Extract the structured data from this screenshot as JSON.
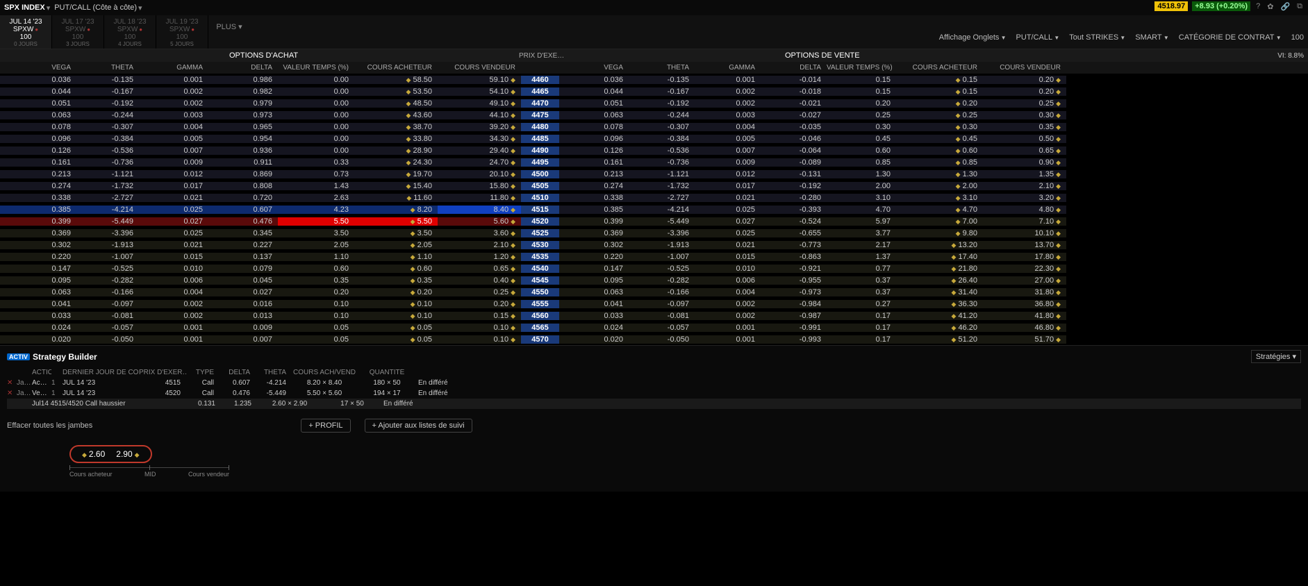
{
  "top": {
    "symbol": "SPX INDEX",
    "mode": "PUT/CALL (Côte à côte)",
    "price": "4518.97",
    "change": "+8.93 (+0.20%)"
  },
  "expiries": [
    {
      "date": "JUL 14 '23",
      "sym": "SPXW",
      "mult": "100",
      "days": "0 JOURS",
      "active": true
    },
    {
      "date": "JUL 17 '23",
      "sym": "SPXW",
      "mult": "100",
      "days": "3 JOURS",
      "active": false
    },
    {
      "date": "JUL 18 '23",
      "sym": "SPXW",
      "mult": "100",
      "days": "4 JOURS",
      "active": false
    },
    {
      "date": "JUL 19 '23",
      "sym": "SPXW",
      "mult": "100",
      "days": "5 JOURS",
      "active": false
    }
  ],
  "plus": "PLUS ▾",
  "filters": {
    "affichage": "Affichage Onglets",
    "putcall": "PUT/CALL",
    "strikes": "Tout STRIKES",
    "smart": "SMART",
    "cat": "CATÉGORIE DE CONTRAT",
    "mult": "100"
  },
  "section": {
    "calls": "OPTIONS D'ACHAT",
    "puts": "OPTIONS DE VENTE",
    "strike": "PRIX D'EXE…",
    "vi": "VI: 8.8%"
  },
  "cols": {
    "vega": "VÉGA",
    "theta": "THÊTA",
    "gamma": "GAMMA",
    "delta": "DELTA",
    "vtemps": "VALEUR TEMPS (%)",
    "bid": "COURS ACHETEUR",
    "ask": "COURS VENDEUR"
  },
  "rows": [
    {
      "s": "4460",
      "c": {
        "vega": "0.036",
        "theta": "-0.135",
        "gamma": "0.001",
        "delta": "0.986",
        "vt": "0.00",
        "bid": "58.50",
        "ask": "59.10"
      },
      "p": {
        "vega": "0.036",
        "theta": "-0.135",
        "gamma": "0.001",
        "delta": "-0.014",
        "vt": "0.15",
        "bid": "0.15",
        "ask": "0.20"
      },
      "itm": true
    },
    {
      "s": "4465",
      "c": {
        "vega": "0.044",
        "theta": "-0.167",
        "gamma": "0.002",
        "delta": "0.982",
        "vt": "0.00",
        "bid": "53.50",
        "ask": "54.10"
      },
      "p": {
        "vega": "0.044",
        "theta": "-0.167",
        "gamma": "0.002",
        "delta": "-0.018",
        "vt": "0.15",
        "bid": "0.15",
        "ask": "0.20"
      },
      "itm": true
    },
    {
      "s": "4470",
      "c": {
        "vega": "0.051",
        "theta": "-0.192",
        "gamma": "0.002",
        "delta": "0.979",
        "vt": "0.00",
        "bid": "48.50",
        "ask": "49.10"
      },
      "p": {
        "vega": "0.051",
        "theta": "-0.192",
        "gamma": "0.002",
        "delta": "-0.021",
        "vt": "0.20",
        "bid": "0.20",
        "ask": "0.25"
      },
      "itm": true
    },
    {
      "s": "4475",
      "c": {
        "vega": "0.063",
        "theta": "-0.244",
        "gamma": "0.003",
        "delta": "0.973",
        "vt": "0.00",
        "bid": "43.60",
        "ask": "44.10"
      },
      "p": {
        "vega": "0.063",
        "theta": "-0.244",
        "gamma": "0.003",
        "delta": "-0.027",
        "vt": "0.25",
        "bid": "0.25",
        "ask": "0.30"
      },
      "itm": true
    },
    {
      "s": "4480",
      "c": {
        "vega": "0.078",
        "theta": "-0.307",
        "gamma": "0.004",
        "delta": "0.965",
        "vt": "0.00",
        "bid": "38.70",
        "ask": "39.20"
      },
      "p": {
        "vega": "0.078",
        "theta": "-0.307",
        "gamma": "0.004",
        "delta": "-0.035",
        "vt": "0.30",
        "bid": "0.30",
        "ask": "0.35"
      },
      "itm": true
    },
    {
      "s": "4485",
      "c": {
        "vega": "0.096",
        "theta": "-0.384",
        "gamma": "0.005",
        "delta": "0.954",
        "vt": "0.00",
        "bid": "33.80",
        "ask": "34.30"
      },
      "p": {
        "vega": "0.096",
        "theta": "-0.384",
        "gamma": "0.005",
        "delta": "-0.046",
        "vt": "0.45",
        "bid": "0.45",
        "ask": "0.50"
      },
      "itm": true
    },
    {
      "s": "4490",
      "c": {
        "vega": "0.126",
        "theta": "-0.536",
        "gamma": "0.007",
        "delta": "0.936",
        "vt": "0.00",
        "bid": "28.90",
        "ask": "29.40"
      },
      "p": {
        "vega": "0.126",
        "theta": "-0.536",
        "gamma": "0.007",
        "delta": "-0.064",
        "vt": "0.60",
        "bid": "0.60",
        "ask": "0.65"
      },
      "itm": true
    },
    {
      "s": "4495",
      "c": {
        "vega": "0.161",
        "theta": "-0.736",
        "gamma": "0.009",
        "delta": "0.911",
        "vt": "0.33",
        "bid": "24.30",
        "ask": "24.70"
      },
      "p": {
        "vega": "0.161",
        "theta": "-0.736",
        "gamma": "0.009",
        "delta": "-0.089",
        "vt": "0.85",
        "bid": "0.85",
        "ask": "0.90"
      },
      "itm": true
    },
    {
      "s": "4500",
      "c": {
        "vega": "0.213",
        "theta": "-1.121",
        "gamma": "0.012",
        "delta": "0.869",
        "vt": "0.73",
        "bid": "19.70",
        "ask": "20.10"
      },
      "p": {
        "vega": "0.213",
        "theta": "-1.121",
        "gamma": "0.012",
        "delta": "-0.131",
        "vt": "1.30",
        "bid": "1.30",
        "ask": "1.35"
      },
      "itm": true
    },
    {
      "s": "4505",
      "c": {
        "vega": "0.274",
        "theta": "-1.732",
        "gamma": "0.017",
        "delta": "0.808",
        "vt": "1.43",
        "bid": "15.40",
        "ask": "15.80"
      },
      "p": {
        "vega": "0.274",
        "theta": "-1.732",
        "gamma": "0.017",
        "delta": "-0.192",
        "vt": "2.00",
        "bid": "2.00",
        "ask": "2.10"
      },
      "itm": true
    },
    {
      "s": "4510",
      "c": {
        "vega": "0.338",
        "theta": "-2.727",
        "gamma": "0.021",
        "delta": "0.720",
        "vt": "2.63",
        "bid": "11.60",
        "ask": "11.80"
      },
      "p": {
        "vega": "0.338",
        "theta": "-2.727",
        "gamma": "0.021",
        "delta": "-0.280",
        "vt": "3.10",
        "bid": "3.10",
        "ask": "3.20"
      },
      "itm": true
    },
    {
      "s": "4515",
      "c": {
        "vega": "0.385",
        "theta": "-4.214",
        "gamma": "0.025",
        "delta": "0.607",
        "vt": "4.23",
        "bid": "8.20",
        "ask": "8.40"
      },
      "p": {
        "vega": "0.385",
        "theta": "-4.214",
        "gamma": "0.025",
        "delta": "-0.393",
        "vt": "4.70",
        "bid": "4.70",
        "ask": "4.80"
      },
      "itm": true,
      "sel": "blue"
    },
    {
      "s": "4520",
      "c": {
        "vega": "0.399",
        "theta": "-5.449",
        "gamma": "0.027",
        "delta": "0.476",
        "vt": "5.50",
        "bid": "5.50",
        "ask": "5.60"
      },
      "p": {
        "vega": "0.399",
        "theta": "-5.449",
        "gamma": "0.027",
        "delta": "-0.524",
        "vt": "5.97",
        "bid": "7.00",
        "ask": "7.10"
      },
      "itm": false,
      "sel": "red"
    },
    {
      "s": "4525",
      "c": {
        "vega": "0.369",
        "theta": "-3.396",
        "gamma": "0.025",
        "delta": "0.345",
        "vt": "3.50",
        "bid": "3.50",
        "ask": "3.60"
      },
      "p": {
        "vega": "0.369",
        "theta": "-3.396",
        "gamma": "0.025",
        "delta": "-0.655",
        "vt": "3.77",
        "bid": "9.80",
        "ask": "10.10"
      },
      "itm": false
    },
    {
      "s": "4530",
      "c": {
        "vega": "0.302",
        "theta": "-1.913",
        "gamma": "0.021",
        "delta": "0.227",
        "vt": "2.05",
        "bid": "2.05",
        "ask": "2.10"
      },
      "p": {
        "vega": "0.302",
        "theta": "-1.913",
        "gamma": "0.021",
        "delta": "-0.773",
        "vt": "2.17",
        "bid": "13.20",
        "ask": "13.70"
      },
      "itm": false
    },
    {
      "s": "4535",
      "c": {
        "vega": "0.220",
        "theta": "-1.007",
        "gamma": "0.015",
        "delta": "0.137",
        "vt": "1.10",
        "bid": "1.10",
        "ask": "1.20"
      },
      "p": {
        "vega": "0.220",
        "theta": "-1.007",
        "gamma": "0.015",
        "delta": "-0.863",
        "vt": "1.37",
        "bid": "17.40",
        "ask": "17.80"
      },
      "itm": false
    },
    {
      "s": "4540",
      "c": {
        "vega": "0.147",
        "theta": "-0.525",
        "gamma": "0.010",
        "delta": "0.079",
        "vt": "0.60",
        "bid": "0.60",
        "ask": "0.65"
      },
      "p": {
        "vega": "0.147",
        "theta": "-0.525",
        "gamma": "0.010",
        "delta": "-0.921",
        "vt": "0.77",
        "bid": "21.80",
        "ask": "22.30"
      },
      "itm": false
    },
    {
      "s": "4545",
      "c": {
        "vega": "0.095",
        "theta": "-0.282",
        "gamma": "0.006",
        "delta": "0.045",
        "vt": "0.35",
        "bid": "0.35",
        "ask": "0.40"
      },
      "p": {
        "vega": "0.095",
        "theta": "-0.282",
        "gamma": "0.006",
        "delta": "-0.955",
        "vt": "0.37",
        "bid": "26.40",
        "ask": "27.00"
      },
      "itm": false
    },
    {
      "s": "4550",
      "c": {
        "vega": "0.063",
        "theta": "-0.166",
        "gamma": "0.004",
        "delta": "0.027",
        "vt": "0.20",
        "bid": "0.20",
        "ask": "0.25"
      },
      "p": {
        "vega": "0.063",
        "theta": "-0.166",
        "gamma": "0.004",
        "delta": "-0.973",
        "vt": "0.37",
        "bid": "31.40",
        "ask": "31.80"
      },
      "itm": false
    },
    {
      "s": "4555",
      "c": {
        "vega": "0.041",
        "theta": "-0.097",
        "gamma": "0.002",
        "delta": "0.016",
        "vt": "0.10",
        "bid": "0.10",
        "ask": "0.20"
      },
      "p": {
        "vega": "0.041",
        "theta": "-0.097",
        "gamma": "0.002",
        "delta": "-0.984",
        "vt": "0.27",
        "bid": "36.30",
        "ask": "36.80"
      },
      "itm": false
    },
    {
      "s": "4560",
      "c": {
        "vega": "0.033",
        "theta": "-0.081",
        "gamma": "0.002",
        "delta": "0.013",
        "vt": "0.10",
        "bid": "0.10",
        "ask": "0.15"
      },
      "p": {
        "vega": "0.033",
        "theta": "-0.081",
        "gamma": "0.002",
        "delta": "-0.987",
        "vt": "0.17",
        "bid": "41.20",
        "ask": "41.80"
      },
      "itm": false
    },
    {
      "s": "4565",
      "c": {
        "vega": "0.024",
        "theta": "-0.057",
        "gamma": "0.001",
        "delta": "0.009",
        "vt": "0.05",
        "bid": "0.05",
        "ask": "0.10"
      },
      "p": {
        "vega": "0.024",
        "theta": "-0.057",
        "gamma": "0.001",
        "delta": "-0.991",
        "vt": "0.17",
        "bid": "46.20",
        "ask": "46.80"
      },
      "itm": false
    },
    {
      "s": "4570",
      "c": {
        "vega": "0.020",
        "theta": "-0.050",
        "gamma": "0.001",
        "delta": "0.007",
        "vt": "0.05",
        "bid": "0.05",
        "ask": "0.10"
      },
      "p": {
        "vega": "0.020",
        "theta": "-0.050",
        "gamma": "0.001",
        "delta": "-0.993",
        "vt": "0.17",
        "bid": "51.20",
        "ask": "51.70"
      },
      "itm": false
    }
  ],
  "builder": {
    "title": "Strategy Builder",
    "strategies": "Stratégies",
    "hdr": {
      "action": "ACTIONRAT…",
      "lj": "DERNIER JOUR DE CO…",
      "px": "PRIX D'EXER…",
      "ty": "TYPE",
      "de": "DELTA",
      "th": "THÊTA",
      "bv": "COURS ACH/VEND",
      "qt": "QUANTITÉ"
    },
    "legs": [
      {
        "ja": "Ja…",
        "ac": "Ac…",
        "r": "1",
        "lj": "JUL 14 '23",
        "px": "4515",
        "ty": "Call",
        "de": "0.607",
        "th": "-4.214",
        "bv": "8.20 × 8.40",
        "qt": "180 × 50",
        "st": "En différé"
      },
      {
        "ja": "Ja…",
        "ac": "Ve…",
        "r": "1",
        "lj": "JUL 14 '23",
        "px": "4520",
        "ty": "Call",
        "de": "0.476",
        "th": "-5.449",
        "bv": "5.50 × 5.60",
        "qt": "194 × 17",
        "st": "En différé"
      }
    ],
    "spread": {
      "name": "Jul14 4515/4520 Call haussier",
      "de": "0.131",
      "th": "1.235",
      "bv": "2.60 × 2.90",
      "qt": "17 × 50",
      "st": "En différé"
    },
    "clear": "Effacer toutes les jambes",
    "profile": "+ PROFIL",
    "watch": "+ Ajouter aux listes de suivi",
    "bid": "2.60",
    "ask": "2.90",
    "slider": {
      "l": "Cours acheteur",
      "m": "MID",
      "r": "Cours vendeur"
    }
  }
}
